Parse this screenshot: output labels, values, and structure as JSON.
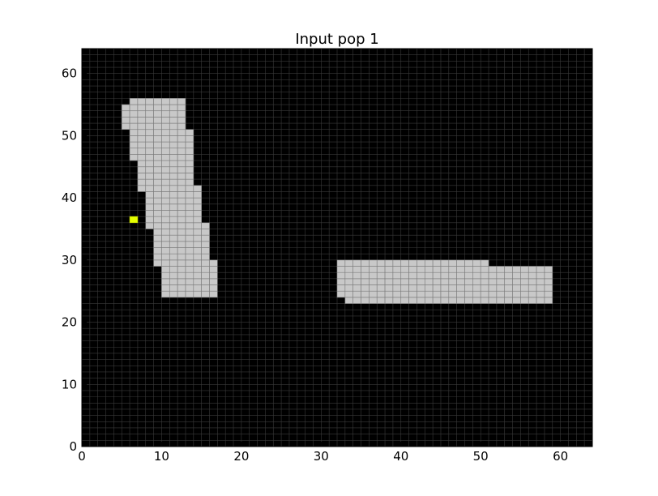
{
  "chart_data": {
    "type": "heatmap",
    "title": "Input pop 1",
    "xlabel": "",
    "ylabel": "",
    "xlim": [
      0,
      64
    ],
    "ylim": [
      0,
      64
    ],
    "grid": true,
    "xticks": [
      "0",
      "10",
      "20",
      "30",
      "40",
      "50",
      "60"
    ],
    "yticks": [
      "0",
      "10",
      "20",
      "30",
      "40",
      "50",
      "60"
    ],
    "colors": {
      "background": "#000000",
      "active_cell": "#c8c8c8",
      "highlight_cell": "#e5ff00",
      "grid_line": "#3a3a3a",
      "active_grid_line": "#7a7a7a"
    },
    "active_regions": [
      {
        "name": "vertical-shape",
        "rows": [
          {
            "y": 24,
            "x0": 10,
            "x1": 17
          },
          {
            "y": 25,
            "x0": 10,
            "x1": 17
          },
          {
            "y": 26,
            "x0": 10,
            "x1": 17
          },
          {
            "y": 27,
            "x0": 10,
            "x1": 17
          },
          {
            "y": 28,
            "x0": 10,
            "x1": 17
          },
          {
            "y": 29,
            "x0": 9,
            "x1": 17
          },
          {
            "y": 30,
            "x0": 9,
            "x1": 16
          },
          {
            "y": 31,
            "x0": 9,
            "x1": 16
          },
          {
            "y": 32,
            "x0": 9,
            "x1": 16
          },
          {
            "y": 33,
            "x0": 9,
            "x1": 16
          },
          {
            "y": 34,
            "x0": 9,
            "x1": 16
          },
          {
            "y": 35,
            "x0": 8,
            "x1": 16
          },
          {
            "y": 36,
            "x0": 8,
            "x1": 15
          },
          {
            "y": 37,
            "x0": 8,
            "x1": 15
          },
          {
            "y": 38,
            "x0": 8,
            "x1": 15
          },
          {
            "y": 39,
            "x0": 8,
            "x1": 15
          },
          {
            "y": 40,
            "x0": 8,
            "x1": 15
          },
          {
            "y": 41,
            "x0": 7,
            "x1": 15
          },
          {
            "y": 42,
            "x0": 7,
            "x1": 14
          },
          {
            "y": 43,
            "x0": 7,
            "x1": 14
          },
          {
            "y": 44,
            "x0": 7,
            "x1": 14
          },
          {
            "y": 45,
            "x0": 7,
            "x1": 14
          },
          {
            "y": 46,
            "x0": 6,
            "x1": 14
          },
          {
            "y": 47,
            "x0": 6,
            "x1": 14
          },
          {
            "y": 48,
            "x0": 6,
            "x1": 14
          },
          {
            "y": 49,
            "x0": 6,
            "x1": 14
          },
          {
            "y": 50,
            "x0": 6,
            "x1": 14
          },
          {
            "y": 51,
            "x0": 5,
            "x1": 13
          },
          {
            "y": 52,
            "x0": 5,
            "x1": 13
          },
          {
            "y": 53,
            "x0": 5,
            "x1": 13
          },
          {
            "y": 54,
            "x0": 5,
            "x1": 13
          },
          {
            "y": 55,
            "x0": 6,
            "x1": 13
          }
        ]
      },
      {
        "name": "horizontal-shape",
        "rows": [
          {
            "y": 23,
            "x0": 33,
            "x1": 59
          },
          {
            "y": 24,
            "x0": 32,
            "x1": 59
          },
          {
            "y": 25,
            "x0": 32,
            "x1": 59
          },
          {
            "y": 26,
            "x0": 32,
            "x1": 59
          },
          {
            "y": 27,
            "x0": 32,
            "x1": 59
          },
          {
            "y": 28,
            "x0": 32,
            "x1": 59
          },
          {
            "y": 29,
            "x0": 32,
            "x1": 51
          }
        ]
      }
    ],
    "highlight_cells": [
      {
        "x": 6,
        "y": 36
      }
    ]
  }
}
